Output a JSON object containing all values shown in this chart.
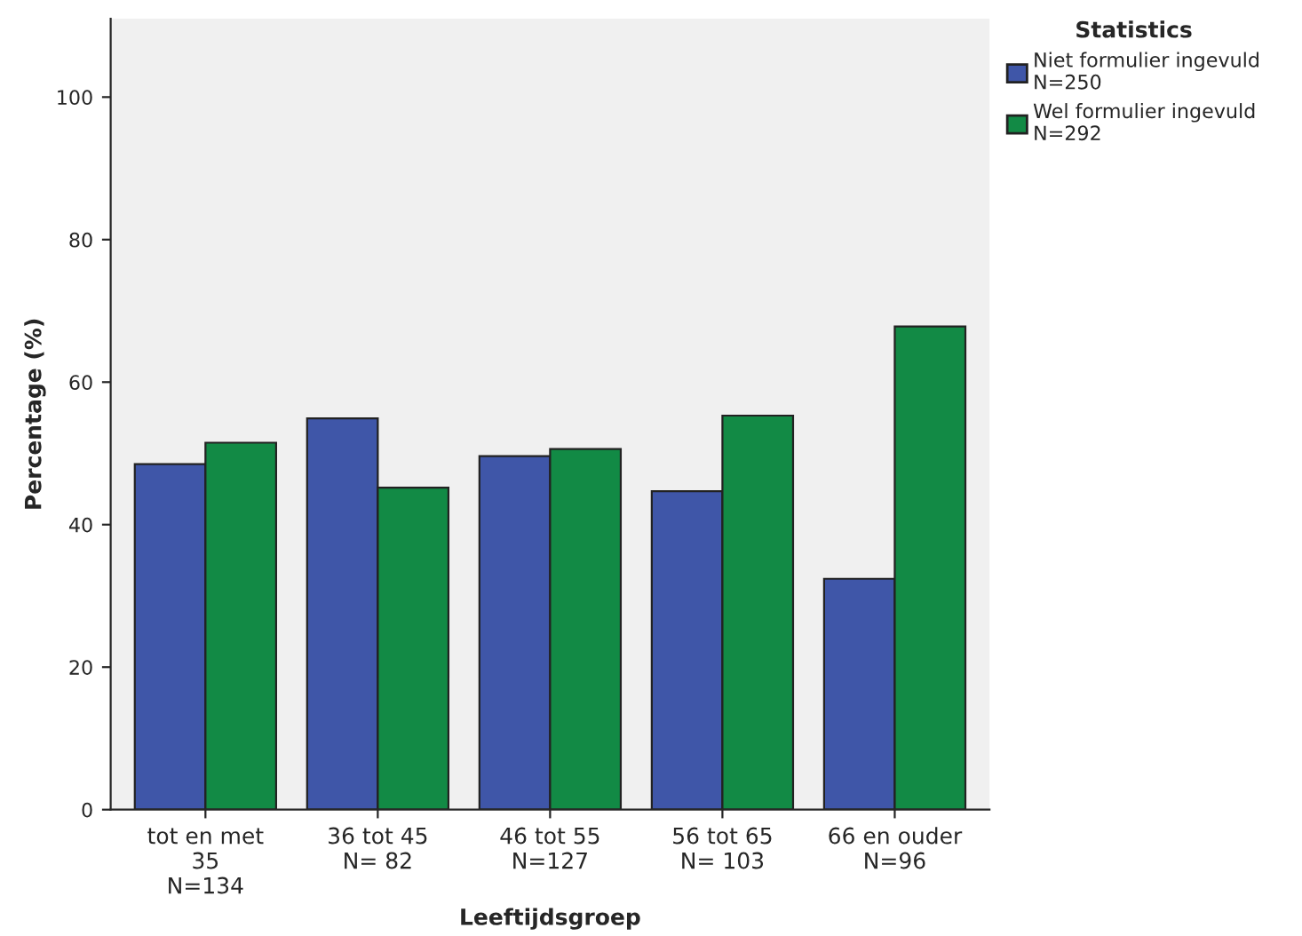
{
  "chart_data": {
    "type": "bar",
    "xlabel": "Leeftijdsgroep",
    "ylabel": "Percentage (%)",
    "legend_title": "Statistics",
    "categories": [
      "tot en met\n35\nN=134",
      "36 tot 45\nN= 82",
      "46 tot 55\nN=127",
      "56 tot 65\nN= 103",
      "66 en ouder\nN=96"
    ],
    "series": [
      {
        "name": "Niet formulier ingevuld\nN=250",
        "color": "#3f56a8",
        "values": [
          48.5,
          54.9,
          49.6,
          44.7,
          32.4
        ]
      },
      {
        "name": "Wel formulier ingevuld\nN=292",
        "color": "#128a45",
        "values": [
          51.5,
          45.2,
          50.6,
          55.3,
          67.8
        ]
      }
    ],
    "ylim": [
      0,
      111
    ],
    "yticks": [
      0,
      20,
      40,
      60,
      80,
      100
    ],
    "grid": false,
    "legend": "top right"
  }
}
